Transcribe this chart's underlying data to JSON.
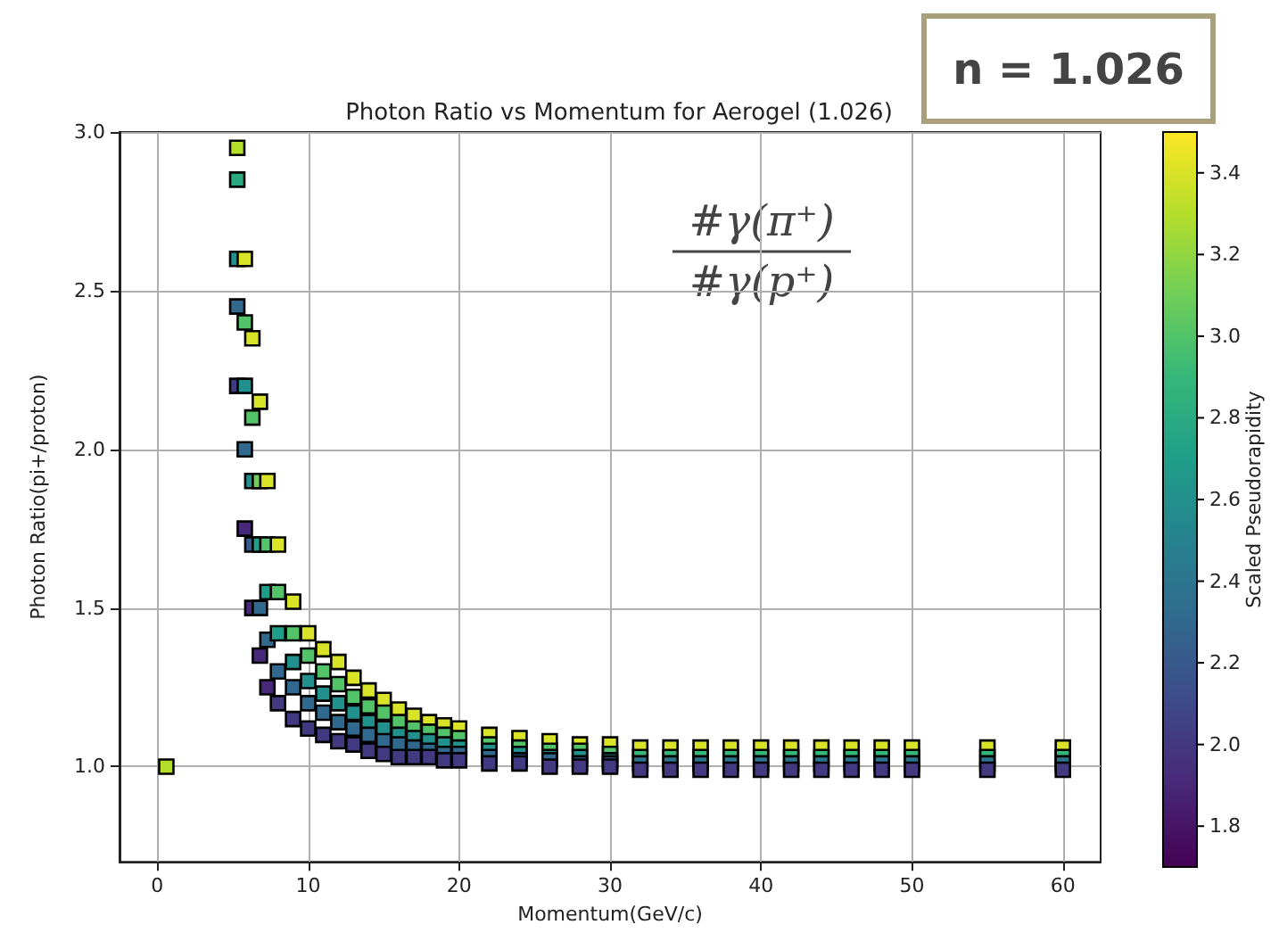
{
  "chart_data": {
    "type": "scatter",
    "title": "Photon Ratio vs Momentum for Aerogel (1.026)",
    "xlabel": "Momentum(GeV/c)",
    "ylabel": "Photon Ratio(pi+/proton)",
    "clabel": "Scaled Pseudorapidity",
    "annotations": [
      "n = 1.026",
      "#γ(π⁺)",
      "#γ(p⁺)"
    ],
    "xlim": [
      -2.5,
      62.5
    ],
    "xticks": [
      0,
      10,
      20,
      30,
      40,
      50,
      60
    ],
    "ylim": [
      0.7,
      3.0
    ],
    "yticks": [
      {
        "value": 1.0,
        "label": "1.0"
      },
      {
        "value": 1.5,
        "label": "1.5"
      },
      {
        "value": 2.0,
        "label": "2.0"
      },
      {
        "value": 2.5,
        "label": "2.5"
      },
      {
        "value": 3.0,
        "label": "3.0"
      }
    ],
    "clim": [
      1.7,
      3.5
    ],
    "cticks": [
      1.8,
      {
        "value": 2.0,
        "label": "2.0"
      },
      2.2,
      2.4,
      2.6,
      2.8,
      {
        "value": 3.0,
        "label": "3.0"
      },
      3.2,
      3.4
    ],
    "grid": true,
    "marker": "square",
    "series": [
      {
        "x": [
          0.6,
          5.3,
          5.3,
          5.3,
          5.3,
          5.3,
          5.8,
          5.8,
          5.8,
          5.8,
          5.8,
          6.3,
          6.3,
          6.3,
          6.3,
          6.3,
          6.8,
          6.8,
          6.8,
          6.8,
          6.8,
          7.3,
          7.3,
          7.3,
          7.3,
          7.3,
          8,
          8,
          8,
          8,
          8,
          9,
          9,
          9,
          9,
          9,
          10,
          10,
          10,
          10,
          10,
          11,
          11,
          11,
          11,
          11,
          12,
          12,
          12,
          12,
          12,
          13,
          13,
          13,
          13,
          13,
          14,
          14,
          14,
          14,
          14,
          15,
          15,
          15,
          15,
          15,
          16,
          16,
          16,
          16,
          16,
          17,
          17,
          17,
          17,
          17,
          18,
          18,
          18,
          18,
          18,
          19,
          19,
          19,
          19,
          19,
          20,
          20,
          20,
          20,
          20,
          22,
          22,
          22,
          22,
          22,
          24,
          24,
          24,
          24,
          24,
          26,
          26,
          26,
          26,
          26,
          28,
          28,
          28,
          28,
          28,
          30,
          30,
          30,
          30,
          30,
          32,
          32,
          32,
          32,
          34,
          34,
          34,
          34,
          36,
          36,
          36,
          36,
          38,
          38,
          38,
          38,
          40,
          40,
          40,
          40,
          42,
          42,
          42,
          42,
          44,
          44,
          44,
          44,
          46,
          46,
          46,
          46,
          48,
          48,
          48,
          48,
          50,
          50,
          50,
          50,
          55,
          55,
          55,
          55,
          60,
          60,
          60,
          60
        ],
        "values": [
          1.0,
          2.95,
          2.85,
          2.6,
          2.45,
          2.2,
          2.6,
          2.4,
          2.2,
          2.0,
          1.75,
          2.35,
          2.1,
          1.9,
          1.7,
          1.5,
          2.15,
          1.9,
          1.7,
          1.5,
          1.35,
          1.9,
          1.7,
          1.55,
          1.4,
          1.25,
          1.7,
          1.55,
          1.42,
          1.3,
          1.2,
          1.52,
          1.42,
          1.33,
          1.25,
          1.15,
          1.42,
          1.35,
          1.27,
          1.2,
          1.12,
          1.37,
          1.3,
          1.23,
          1.17,
          1.1,
          1.33,
          1.26,
          1.2,
          1.14,
          1.08,
          1.28,
          1.22,
          1.17,
          1.12,
          1.07,
          1.24,
          1.19,
          1.14,
          1.1,
          1.05,
          1.21,
          1.17,
          1.12,
          1.08,
          1.04,
          1.18,
          1.14,
          1.1,
          1.07,
          1.03,
          1.16,
          1.12,
          1.09,
          1.06,
          1.03,
          1.14,
          1.11,
          1.08,
          1.05,
          1.03,
          1.13,
          1.1,
          1.07,
          1.04,
          1.02,
          1.12,
          1.09,
          1.06,
          1.04,
          1.02,
          1.1,
          1.07,
          1.05,
          1.03,
          1.01,
          1.09,
          1.06,
          1.04,
          1.02,
          1.01,
          1.08,
          1.05,
          1.03,
          1.02,
          1.0,
          1.07,
          1.05,
          1.03,
          1.01,
          1.0,
          1.07,
          1.04,
          1.02,
          1.01,
          1.0,
          1.06,
          1.03,
          1.01,
          0.99,
          1.06,
          1.03,
          1.01,
          0.99,
          1.06,
          1.03,
          1.01,
          0.99,
          1.06,
          1.03,
          1.01,
          0.99,
          1.06,
          1.03,
          1.01,
          0.99,
          1.06,
          1.03,
          1.01,
          0.99,
          1.06,
          1.03,
          1.01,
          0.99,
          1.06,
          1.03,
          1.01,
          0.99,
          1.06,
          1.03,
          1.01,
          0.99,
          1.06,
          1.03,
          1.01,
          0.99,
          1.06,
          1.03,
          1.01,
          0.99,
          1.06,
          1.03,
          1.01,
          0.99
        ],
        "cvalues": [
          3.3,
          3.3,
          2.8,
          2.6,
          2.3,
          2.0,
          3.4,
          3.0,
          2.6,
          2.3,
          1.9,
          3.4,
          3.0,
          2.6,
          2.2,
          1.9,
          3.4,
          3.1,
          2.7,
          2.3,
          1.9,
          3.4,
          3.0,
          2.7,
          2.3,
          1.9,
          3.4,
          3.0,
          2.7,
          2.3,
          2.0,
          3.4,
          3.0,
          2.6,
          2.3,
          2.0,
          3.4,
          3.0,
          2.6,
          2.3,
          2.0,
          3.4,
          3.0,
          2.6,
          2.3,
          2.0,
          3.4,
          3.0,
          2.6,
          2.3,
          2.0,
          3.4,
          3.0,
          2.6,
          2.3,
          2.0,
          3.4,
          3.0,
          2.6,
          2.3,
          2.0,
          3.4,
          3.0,
          2.6,
          2.3,
          2.0,
          3.4,
          3.0,
          2.6,
          2.3,
          2.0,
          3.4,
          3.0,
          2.6,
          2.3,
          2.0,
          3.4,
          3.0,
          2.6,
          2.3,
          2.0,
          3.4,
          3.0,
          2.6,
          2.3,
          2.0,
          3.4,
          3.0,
          2.6,
          2.3,
          2.0,
          3.4,
          3.0,
          2.6,
          2.3,
          2.0,
          3.4,
          3.0,
          2.6,
          2.3,
          2.0,
          3.4,
          3.0,
          2.6,
          2.3,
          2.0,
          3.4,
          3.0,
          2.6,
          2.3,
          2.0,
          3.4,
          3.0,
          2.6,
          2.3,
          2.0,
          3.4,
          2.9,
          2.4,
          2.0,
          3.4,
          2.9,
          2.4,
          2.0,
          3.4,
          2.9,
          2.4,
          2.0,
          3.4,
          2.9,
          2.4,
          2.0,
          3.4,
          2.9,
          2.4,
          2.0,
          3.4,
          2.9,
          2.4,
          2.0,
          3.4,
          2.9,
          2.4,
          2.0,
          3.4,
          2.9,
          2.4,
          2.0,
          3.4,
          2.9,
          2.4,
          2.0,
          3.4,
          2.9,
          2.4,
          2.0,
          3.4,
          2.9,
          2.4,
          2.0,
          3.4,
          2.9,
          2.4,
          2.0
        ]
      }
    ]
  }
}
